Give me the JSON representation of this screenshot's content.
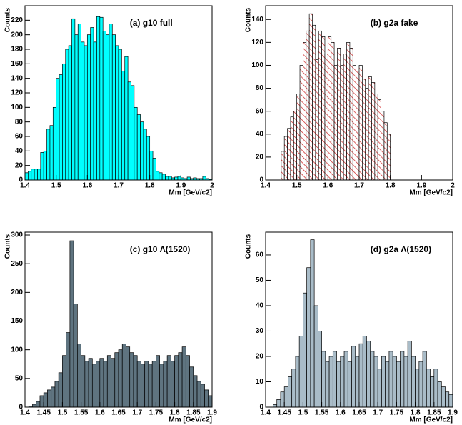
{
  "chart_data": [
    {
      "type": "histogram",
      "title": "(a) g10 full",
      "x_label": "Mm [GeV/c2]",
      "y_label": "Counts",
      "color": "#00ffff",
      "hatch": false,
      "bins": [
        1.4,
        1.41,
        1.42,
        1.43,
        1.44,
        1.45,
        1.46,
        1.47,
        1.48,
        1.49,
        1.5,
        1.51,
        1.52,
        1.53,
        1.54,
        1.55,
        1.56,
        1.57,
        1.58,
        1.59,
        1.6,
        1.61,
        1.62,
        1.63,
        1.64,
        1.65,
        1.66,
        1.67,
        1.68,
        1.69,
        1.7,
        1.71,
        1.72,
        1.73,
        1.74,
        1.75,
        1.76,
        1.77,
        1.78,
        1.79,
        1.8,
        1.81,
        1.82,
        1.83,
        1.84,
        1.85,
        1.86,
        1.87,
        1.88,
        1.89,
        1.9,
        1.91,
        1.92,
        1.93,
        1.94,
        1.95,
        1.96,
        1.97,
        1.98,
        1.99,
        2
      ],
      "values": [
        10,
        12,
        15,
        15,
        15,
        38,
        40,
        70,
        75,
        100,
        140,
        145,
        160,
        180,
        185,
        222,
        200,
        215,
        190,
        185,
        200,
        210,
        190,
        225,
        224,
        205,
        200,
        215,
        200,
        185,
        180,
        150,
        170,
        135,
        130,
        100,
        90,
        80,
        70,
        60,
        40,
        30,
        12,
        10,
        8,
        5,
        5,
        3,
        4,
        5,
        3,
        2,
        4,
        2,
        3,
        2,
        2,
        5,
        2,
        1
      ],
      "xlim": [
        1.4,
        2
      ],
      "xticks": [
        1.4,
        1.5,
        1.6,
        1.7,
        1.8,
        1.9,
        2
      ],
      "ylim": [
        0,
        240
      ],
      "yticks": [
        0,
        20,
        40,
        60,
        80,
        100,
        120,
        140,
        160,
        180,
        200,
        220
      ]
    },
    {
      "type": "histogram",
      "title": "(b) g2a fake",
      "x_label": "Mm [GeV/c2]",
      "y_label": "Counts",
      "color": "#cc2222",
      "hatch": true,
      "bins": [
        1.45,
        1.46,
        1.47,
        1.48,
        1.49,
        1.5,
        1.51,
        1.52,
        1.53,
        1.54,
        1.55,
        1.56,
        1.57,
        1.58,
        1.59,
        1.6,
        1.61,
        1.62,
        1.63,
        1.64,
        1.65,
        1.66,
        1.67,
        1.68,
        1.69,
        1.7,
        1.71,
        1.72,
        1.73,
        1.74,
        1.75,
        1.76,
        1.77,
        1.78,
        1.79,
        1.8
      ],
      "values": [
        25,
        38,
        45,
        55,
        60,
        75,
        100,
        120,
        130,
        145,
        135,
        105,
        130,
        125,
        110,
        125,
        120,
        100,
        115,
        100,
        110,
        120,
        115,
        100,
        95,
        100,
        88,
        80,
        90,
        85,
        75,
        70,
        60,
        50,
        40
      ],
      "xlim": [
        1.4,
        2
      ],
      "xticks": [
        1.4,
        1.5,
        1.6,
        1.7,
        1.8,
        1.9,
        2
      ],
      "ylim": [
        0,
        152
      ],
      "yticks": [
        0,
        20,
        40,
        60,
        80,
        100,
        120,
        140
      ]
    },
    {
      "type": "histogram",
      "title": "(c) g10 Λ(1520)",
      "x_label": "Mm [GeV/c2]",
      "y_label": "Counts",
      "color": "#5f7480",
      "hatch": false,
      "bins": [
        1.4,
        1.41,
        1.42,
        1.43,
        1.44,
        1.45,
        1.46,
        1.47,
        1.48,
        1.49,
        1.5,
        1.51,
        1.52,
        1.53,
        1.54,
        1.55,
        1.56,
        1.57,
        1.58,
        1.59,
        1.6,
        1.61,
        1.62,
        1.63,
        1.64,
        1.65,
        1.66,
        1.67,
        1.68,
        1.69,
        1.7,
        1.71,
        1.72,
        1.73,
        1.74,
        1.75,
        1.76,
        1.77,
        1.78,
        1.79,
        1.8,
        1.81,
        1.82,
        1.83,
        1.84,
        1.85,
        1.86,
        1.87,
        1.88,
        1.89,
        1.9
      ],
      "values": [
        0,
        2,
        5,
        10,
        20,
        25,
        30,
        35,
        45,
        60,
        90,
        130,
        290,
        180,
        110,
        90,
        80,
        85,
        75,
        80,
        85,
        80,
        90,
        85,
        95,
        100,
        110,
        105,
        95,
        90,
        80,
        75,
        80,
        75,
        80,
        90,
        75,
        80,
        90,
        80,
        90,
        95,
        105,
        90,
        70,
        55,
        45,
        40,
        30,
        20
      ],
      "xlim": [
        1.4,
        1.9
      ],
      "xticks": [
        1.4,
        1.45,
        1.5,
        1.55,
        1.6,
        1.65,
        1.7,
        1.75,
        1.8,
        1.85,
        1.9
      ],
      "ylim": [
        0,
        305
      ],
      "yticks": [
        0,
        50,
        100,
        150,
        200,
        250,
        300
      ]
    },
    {
      "type": "histogram",
      "title": "(d) g2a Λ(1520)",
      "x_label": "Mm [GeV/c2]",
      "y_label": "Counts",
      "color": "#a9bcc8",
      "hatch": false,
      "bins": [
        1.4,
        1.41,
        1.42,
        1.43,
        1.44,
        1.45,
        1.46,
        1.47,
        1.48,
        1.49,
        1.5,
        1.51,
        1.52,
        1.53,
        1.54,
        1.55,
        1.56,
        1.57,
        1.58,
        1.59,
        1.6,
        1.61,
        1.62,
        1.63,
        1.64,
        1.65,
        1.66,
        1.67,
        1.68,
        1.69,
        1.7,
        1.71,
        1.72,
        1.73,
        1.74,
        1.75,
        1.76,
        1.77,
        1.78,
        1.79,
        1.8,
        1.81,
        1.82,
        1.83,
        1.84,
        1.85,
        1.86,
        1.87,
        1.88,
        1.89,
        1.9
      ],
      "values": [
        0,
        0,
        1,
        3,
        6,
        8,
        12,
        15,
        20,
        28,
        45,
        55,
        66,
        40,
        30,
        22,
        18,
        20,
        22,
        18,
        20,
        22,
        18,
        24,
        20,
        25,
        28,
        26,
        22,
        20,
        15,
        20,
        18,
        22,
        20,
        18,
        22,
        20,
        26,
        20,
        15,
        18,
        22,
        15,
        12,
        15,
        10,
        8,
        6,
        5
      ],
      "xlim": [
        1.4,
        1.9
      ],
      "xticks": [
        1.4,
        1.45,
        1.5,
        1.55,
        1.6,
        1.65,
        1.7,
        1.75,
        1.8,
        1.85,
        1.9
      ],
      "ylim": [
        0,
        69
      ],
      "yticks": [
        0,
        10,
        20,
        30,
        40,
        50,
        60
      ]
    }
  ]
}
